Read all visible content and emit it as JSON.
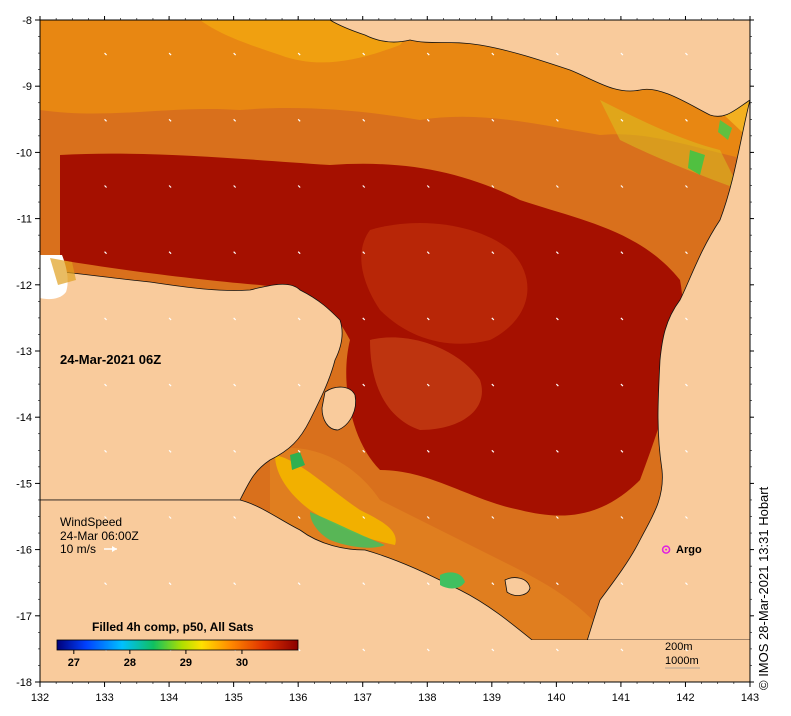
{
  "map": {
    "lon_ticks": [
      "132",
      "133",
      "134",
      "135",
      "136",
      "137",
      "138",
      "139",
      "140",
      "141",
      "142",
      "143"
    ],
    "lat_ticks": [
      "-8",
      "-9",
      "-10",
      "-11",
      "-12",
      "-13",
      "-14",
      "-15",
      "-16",
      "-17",
      "-18"
    ],
    "lon_range": [
      132,
      143
    ],
    "lat_range": [
      -18,
      -8
    ],
    "date_label": "24-Mar-2021 06Z",
    "wind": {
      "title": "WindSpeed",
      "time": "24-Mar 06:00Z",
      "scale": "10 m/s"
    },
    "argo_label": "Argo",
    "argo_position": {
      "lon": 141.7,
      "lat": -16.0
    },
    "colorbar": {
      "title": "Filled 4h comp, p50, All Sats",
      "ticks": [
        "27",
        "28",
        "29",
        "30"
      ],
      "range": [
        26.7,
        31.0
      ]
    },
    "contours": [
      "200m",
      "1000m"
    ],
    "credit": "© IMOS 28-Mar-2021 13:31 Hobart",
    "colors": {
      "land": "#f9cb9c",
      "warm": "#a51000",
      "mid": "#e26a0a",
      "cool": "#f2a20a",
      "argo": "#e020e0"
    }
  }
}
